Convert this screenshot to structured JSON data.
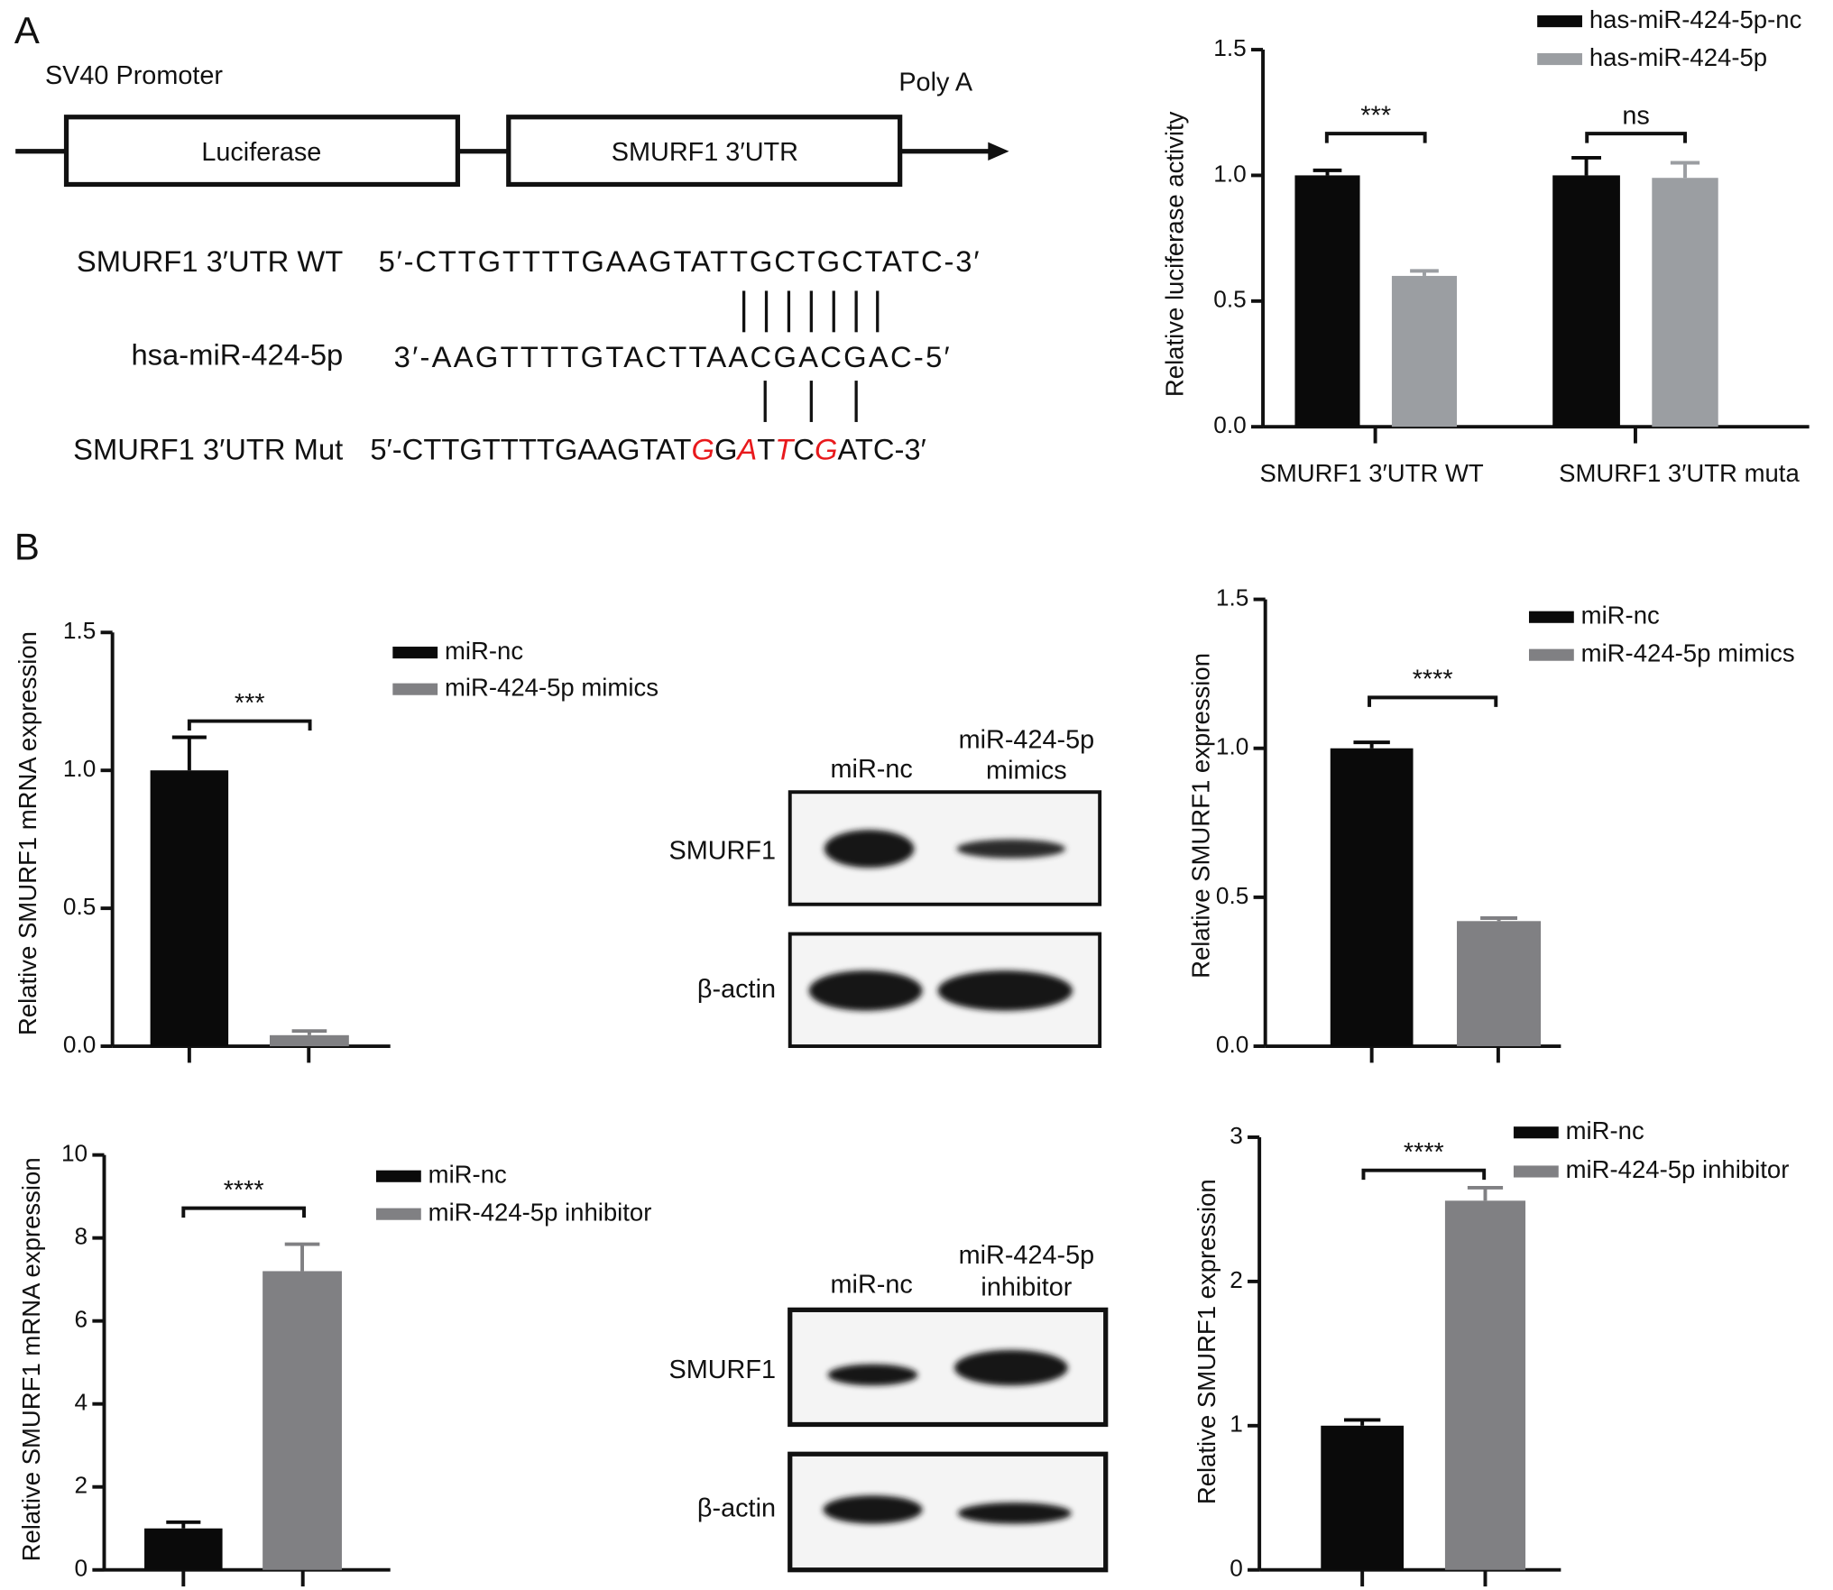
{
  "panel_labels": [
    "A",
    "B"
  ],
  "construct": {
    "promoter": "SV40 Promoter",
    "box1": "Luciferase",
    "box2": "SMURF1 3′UTR",
    "polya": "Poly A"
  },
  "sequences": {
    "wt": {
      "label": "SMURF1 3′UTR WT",
      "sequence": "5′-CTTGTTTTGAAGTATTGCTGCTATC-3′"
    },
    "mirna": {
      "label": "hsa-miR-424-5p",
      "sequence": "3′-AAGTTTTGTACTTAACGACGAC-5′"
    },
    "mut": {
      "label": "SMURF1 3′UTR Mut",
      "parts": [
        {
          "text": "5′-CTTGTTTTGAAGTAT",
          "mutated": false
        },
        {
          "text": "G",
          "mutated": true
        },
        {
          "text": "G",
          "mutated": false
        },
        {
          "text": "A",
          "mutated": true
        },
        {
          "text": "T",
          "mutated": false
        },
        {
          "text": "T",
          "mutated": true
        },
        {
          "text": "C",
          "mutated": false
        },
        {
          "text": "G",
          "mutated": true
        },
        {
          "text": "ATC-3′",
          "mutated": false
        }
      ]
    },
    "mutation_color": "#e8191c"
  },
  "blots": [
    {
      "columns": [
        [
          "miR-nc"
        ],
        [
          "miR-424-5p",
          "mimics"
        ]
      ],
      "rows": [
        "SMURF1",
        "β-actin"
      ]
    },
    {
      "columns": [
        [
          "miR-nc"
        ],
        [
          "miR-424-5p",
          "inhibitor"
        ]
      ],
      "rows": [
        "SMURF1",
        "β-actin"
      ]
    }
  ],
  "chart_data": [
    {
      "type": "bar",
      "y_label": "Relative luciferase activity",
      "categories": [
        "SMURF1 3′UTR WT",
        "SMURF1 3′UTR muta"
      ],
      "series": [
        {
          "name": "has-miR-424-5p-nc",
          "color": "#0a0a0a",
          "values": [
            1.0,
            1.0
          ],
          "errors": [
            0.02,
            0.07
          ]
        },
        {
          "name": "has-miR-424-5p",
          "color": "#9b9ea2",
          "values": [
            0.6,
            0.99
          ],
          "errors": [
            0.02,
            0.06
          ]
        }
      ],
      "annotations": [
        "***",
        "ns"
      ],
      "ylim": [
        0,
        1.5
      ],
      "yticks": [
        {
          "value": 0,
          "label": "0.0"
        },
        {
          "value": 0.5,
          "label": "0.5"
        },
        {
          "value": 1,
          "label": "1.0"
        },
        {
          "value": 1.5,
          "label": "1.5"
        }
      ]
    },
    {
      "type": "bar",
      "y_label": "Relative SMURF1 mRNA expression",
      "categories": [
        null,
        null
      ],
      "series": [
        {
          "name": "miR-nc",
          "color": "#0a0a0a",
          "values": [
            1.0,
            null
          ],
          "errors": [
            0.12,
            null
          ]
        },
        {
          "name": "miR-424-5p mimics",
          "color": "#808083",
          "values": [
            null,
            0.04
          ],
          "errors": [
            null,
            0.015
          ]
        }
      ],
      "annotations": [
        "***"
      ],
      "ylim": [
        0,
        1.5
      ],
      "yticks": [
        {
          "value": 0,
          "label": "0.0"
        },
        {
          "value": 0.5,
          "label": "0.5"
        },
        {
          "value": 1,
          "label": "1.0"
        },
        {
          "value": 1.5,
          "label": "1.5"
        }
      ]
    },
    {
      "type": "bar",
      "y_label": "Relative SMURF1 expression",
      "categories": [
        null,
        null
      ],
      "series": [
        {
          "name": "miR-nc",
          "color": "#0a0a0a",
          "values": [
            1.0,
            null
          ],
          "errors": [
            0.02,
            null
          ]
        },
        {
          "name": "miR-424-5p mimics",
          "color": "#808083",
          "values": [
            null,
            0.42
          ],
          "errors": [
            null,
            0.01
          ]
        }
      ],
      "annotations": [
        "****"
      ],
      "ylim": [
        0,
        1.5
      ],
      "yticks": [
        {
          "value": 0,
          "label": "0.0"
        },
        {
          "value": 0.5,
          "label": "0.5"
        },
        {
          "value": 1,
          "label": "1.0"
        },
        {
          "value": 1.5,
          "label": "1.5"
        }
      ]
    },
    {
      "type": "bar",
      "y_label": "Relative SMURF1 mRNA expression",
      "categories": [
        null,
        null
      ],
      "series": [
        {
          "name": "miR-nc",
          "color": "#0a0a0a",
          "values": [
            1.0,
            null
          ],
          "errors": [
            0.15,
            null
          ]
        },
        {
          "name": "miR-424-5p inhibitor",
          "color": "#808083",
          "values": [
            null,
            7.2
          ],
          "errors": [
            null,
            0.65
          ]
        }
      ],
      "annotations": [
        "****"
      ],
      "ylim": [
        0,
        10
      ],
      "yticks": [
        0,
        2,
        4,
        6,
        8,
        10
      ]
    },
    {
      "type": "bar",
      "y_label": "Relative SMURF1 expression",
      "categories": [
        null,
        null
      ],
      "series": [
        {
          "name": "miR-nc",
          "color": "#0a0a0a",
          "values": [
            1.0,
            null
          ],
          "errors": [
            0.04,
            null
          ]
        },
        {
          "name": "miR-424-5p inhibitor",
          "color": "#808083",
          "values": [
            null,
            2.56
          ],
          "errors": [
            null,
            0.09
          ]
        }
      ],
      "annotations": [
        "****"
      ],
      "ylim": [
        0,
        3
      ],
      "yticks": [
        0,
        1,
        2,
        3
      ]
    }
  ]
}
